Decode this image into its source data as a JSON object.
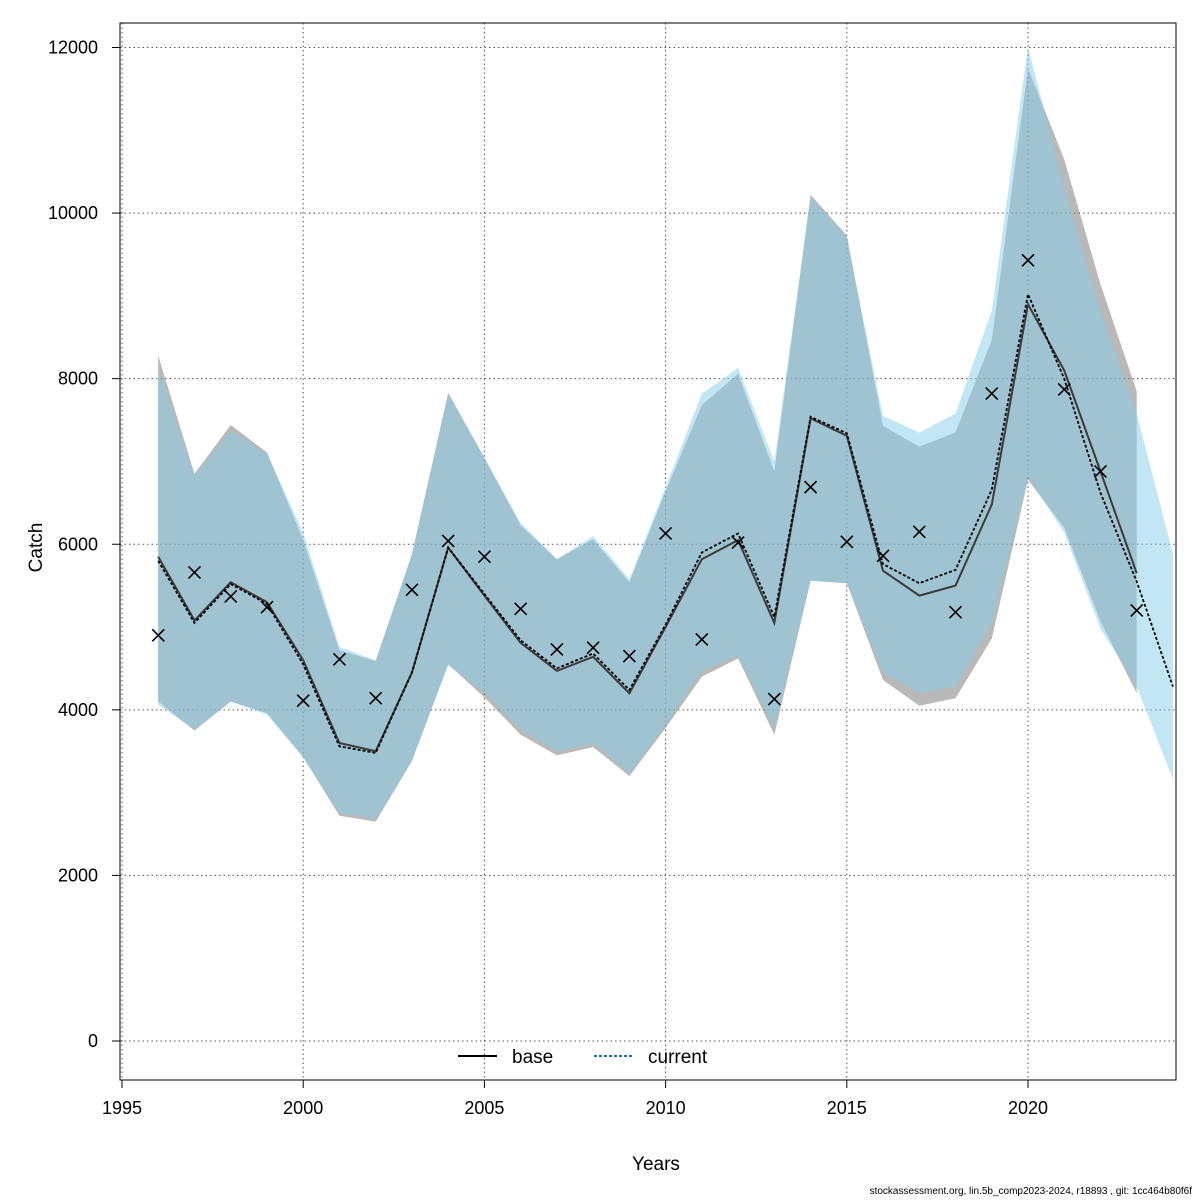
{
  "chart_data": {
    "type": "line",
    "title": "",
    "xlabel": "Years",
    "ylabel": "Catch",
    "xlim": [
      1995,
      2024
    ],
    "ylim": [
      0,
      12000
    ],
    "x_ticks": [
      1995,
      2000,
      2005,
      2010,
      2015,
      2020
    ],
    "y_ticks": [
      0,
      2000,
      4000,
      6000,
      8000,
      10000,
      12000
    ],
    "grid": true,
    "legend_position": "bottom-center",
    "observed": {
      "x": [
        1996,
        1997,
        1998,
        1999,
        2000,
        2001,
        2002,
        2003,
        2004,
        2005,
        2006,
        2007,
        2008,
        2009,
        2010,
        2011,
        2012,
        2013,
        2014,
        2015,
        2016,
        2017,
        2018,
        2019,
        2020,
        2021,
        2022,
        2023
      ],
      "y": [
        4900,
        5660,
        5370,
        5240,
        4110,
        4610,
        4140,
        5450,
        6040,
        5850,
        5220,
        4730,
        4750,
        4650,
        6130,
        4850,
        6020,
        4130,
        6690,
        6030,
        5860,
        6150,
        5180,
        7820,
        9430,
        7870,
        6880,
        5200
      ]
    },
    "series": [
      {
        "name": "base",
        "color": "#000000",
        "band_color": "#808080",
        "x": [
          1996,
          1997,
          1998,
          1999,
          2000,
          2001,
          2002,
          2003,
          2004,
          2005,
          2006,
          2007,
          2008,
          2009,
          2010,
          2011,
          2012,
          2013,
          2014,
          2015,
          2016,
          2017,
          2018,
          2019,
          2020,
          2021,
          2022,
          2023
        ],
        "y": [
          5850,
          5080,
          5540,
          5300,
          4600,
          3600,
          3500,
          4450,
          5960,
          5380,
          4810,
          4470,
          4640,
          4200,
          5000,
          5820,
          6050,
          5050,
          7520,
          7310,
          5680,
          5380,
          5500,
          6480,
          8900,
          8100,
          6880,
          5650
        ],
        "lower": [
          4100,
          3750,
          4100,
          3960,
          3430,
          2720,
          2650,
          3380,
          4550,
          4150,
          3700,
          3450,
          3550,
          3200,
          3780,
          4400,
          4620,
          3700,
          5560,
          5530,
          4360,
          4050,
          4140,
          4860,
          6780,
          6200,
          5070,
          4200
        ],
        "upper": [
          8280,
          6850,
          7440,
          7110,
          6050,
          4720,
          4590,
          5880,
          7830,
          7040,
          6230,
          5820,
          6060,
          5540,
          6640,
          7680,
          8060,
          6880,
          10220,
          9730,
          7430,
          7180,
          7350,
          8470,
          11750,
          10650,
          9140,
          7850
        ]
      },
      {
        "name": "current",
        "color": "#1f6f9f",
        "band_color": "#87ceeb",
        "x": [
          1996,
          1997,
          1998,
          1999,
          2000,
          2001,
          2002,
          2003,
          2004,
          2005,
          2006,
          2007,
          2008,
          2009,
          2010,
          2011,
          2012,
          2013,
          2014,
          2015,
          2016,
          2017,
          2018,
          2019,
          2020,
          2021,
          2022,
          2023,
          2024
        ],
        "y": [
          5800,
          5050,
          5520,
          5280,
          4550,
          3560,
          3480,
          4450,
          5960,
          5400,
          4840,
          4500,
          4680,
          4240,
          5030,
          5900,
          6130,
          5120,
          7540,
          7340,
          5760,
          5530,
          5690,
          6660,
          9020,
          8000,
          6620,
          5550,
          4280
        ],
        "lower": [
          4060,
          3760,
          4100,
          3940,
          3420,
          2760,
          2680,
          3390,
          4540,
          4210,
          3760,
          3500,
          3600,
          3230,
          3820,
          4480,
          4650,
          3790,
          5560,
          5530,
          4450,
          4200,
          4280,
          5060,
          6820,
          6140,
          4980,
          4280,
          3160
        ],
        "upper": [
          8110,
          6830,
          7370,
          7100,
          6140,
          4760,
          4600,
          5870,
          7820,
          7050,
          6260,
          5820,
          6100,
          5580,
          6690,
          7820,
          8130,
          7000,
          10200,
          9700,
          7550,
          7350,
          7580,
          8820,
          12010,
          10300,
          8810,
          7580,
          5880
        ]
      }
    ],
    "legend": [
      "base",
      "current"
    ],
    "footer": "stockassessment.org, lin.5b_comp2023-2024, r18893 , git: 1cc464b80f6f"
  }
}
